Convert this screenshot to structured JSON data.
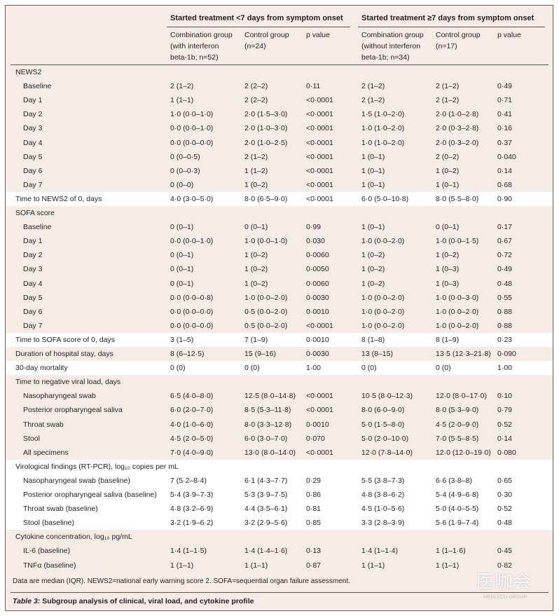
{
  "header": {
    "groups": [
      "Started treatment <7 days from symptom onset",
      "Started treatment ≥7 days from symptom onset"
    ],
    "columns": [
      [
        "Combination group",
        "(with interferon",
        "beta-1b; n=52)"
      ],
      [
        "Control group",
        "(n=24)"
      ],
      [
        "p value"
      ],
      [
        "Combination group",
        "(without interferon",
        "beta-1b; n=34)"
      ],
      [
        "Control group",
        "(n=17)"
      ],
      [
        "p value"
      ]
    ]
  },
  "sections": [
    {
      "heading": "NEWS2",
      "rows": [
        {
          "label": "Baseline",
          "values": [
            "2 (1–2)",
            "2 (2–2)",
            "0·11",
            "2 (1–2)",
            "2 (1–2)",
            "0·49"
          ]
        },
        {
          "label": "Day 1",
          "values": [
            "1 (1–1)",
            "2 (2–2)",
            "<0·0001",
            "2 (1–2)",
            "2 (1–2)",
            "0·71"
          ]
        },
        {
          "label": "Day 2",
          "values": [
            "1·0 (0·0–1·0)",
            "2·0 (1·5–3·0)",
            "<0·0001",
            "1·5 (1·0–2·0)",
            "2·0 (1·0–2·8)",
            "0·41"
          ]
        },
        {
          "label": "Day 3",
          "values": [
            "0·0 (0·0–1·0)",
            "2·0 (1·0–3·0)",
            "<0·0001",
            "1·0 (1·0–2·0)",
            "2·0 (0·3–2·8)",
            "0·16"
          ]
        },
        {
          "label": "Day 4",
          "values": [
            "0·0 (0·0–0·0)",
            "2·0 (1·0–2·5)",
            "<0·0001",
            "1·0 (1·0–2·0)",
            "2·0 (0·3–2·0)",
            "0·37"
          ]
        },
        {
          "label": "Day 5",
          "values": [
            "0 (0–0·5)",
            "2 (1–2)",
            "<0·0001",
            "1 (0–1)",
            "2 (0–2)",
            "0·040"
          ]
        },
        {
          "label": "Day 6",
          "values": [
            "0 (0–0·3)",
            "1 (1–2)",
            "<0·0001",
            "1 (0–1)",
            "1 (0–2)",
            "0·14"
          ]
        },
        {
          "label": "Day 7",
          "values": [
            "0 (0–0)",
            "1 (0–2)",
            "<0·0001",
            "1 (0–1)",
            "1 (0–1)",
            "0·68"
          ]
        }
      ]
    },
    {
      "heading": "Time to NEWS2 of 0, days",
      "values": [
        "4·0 (3·0–5·0)",
        "8·0 (6·5–9·0)",
        "<0·0001",
        "6·0 (5·0–10·8)",
        "8·0 (5·5–8·0)",
        "0·90"
      ]
    },
    {
      "heading": "SOFA score",
      "rows": [
        {
          "label": "Baseline",
          "values": [
            "0 (0–1)",
            "0 (0–1)",
            "0·99",
            "1 (0–1)",
            "0 (0–1)",
            "0·17"
          ]
        },
        {
          "label": "Day 1",
          "values": [
            "0·0 (0·0–1·0)",
            "1·0 (0·0–1·0)",
            "0·030",
            "1·0 (0·0–2·0)",
            "1·0 (0·0–1·5)",
            "0·67"
          ]
        },
        {
          "label": "Day 2",
          "values": [
            "0 (0–1)",
            "1 (0–2)",
            "0·0060",
            "1 (0–2)",
            "1 (0–2)",
            "0·72"
          ]
        },
        {
          "label": "Day 3",
          "values": [
            "0 (0–1)",
            "1 (0–2)",
            "0·0050",
            "1 (0–2)",
            "1 (0–3)",
            "0·49"
          ]
        },
        {
          "label": "Day 4",
          "values": [
            "0 (0–1)",
            "1 (0–2)",
            "0·0060",
            "1 (0–2)",
            "1 (0–3)",
            "0·48"
          ]
        },
        {
          "label": "Day 5",
          "values": [
            "0·0 (0·0–0·8)",
            "1·0 (0·0–2·0)",
            "0·0030",
            "1·0 (0·0–2·0)",
            "1·0 (0·0–3·0)",
            "0·55"
          ]
        },
        {
          "label": "Day 6",
          "values": [
            "0·0 (0·0–0·0)",
            "0·5 (0·0–2·0)",
            "0·0010",
            "1·0 (0·0–2·0)",
            "1·0 (0·0–2·0)",
            "0·88"
          ]
        },
        {
          "label": "Day 7",
          "values": [
            "0·0 (0·0–0·0)",
            "0·5 (0·0–2·0)",
            "<0·0001",
            "1·0 (0·0–2·0)",
            "1·0 (0·0–2·0)",
            "0·88"
          ]
        }
      ]
    },
    {
      "heading": "Time to SOFA score of 0, days",
      "values": [
        "3 (1–5)",
        "7 (1–9)",
        "0·0010",
        "8 (1–8)",
        "8 (1–9)",
        "0·23"
      ]
    },
    {
      "heading": "Duration of hospital stay, days",
      "values": [
        "8 (6–12·5)",
        "15 (9–16)",
        "0·0030",
        "13 (8–15)",
        "13·5 (12·3–21·8)",
        "0·090"
      ]
    },
    {
      "heading": "30-day mortality",
      "values": [
        "0 (0)",
        "0 (0)",
        "1·00",
        "0 (0)",
        "0 (0)",
        "1·00"
      ]
    },
    {
      "heading": "Time to negative viral load, days",
      "rows": [
        {
          "label": "Nasopharyngeal swab",
          "values": [
            "6·5 (4·0–8·0)",
            "12·5 (8·0–14·8)",
            "<0·0001",
            "10·5 (8·0–12·3)",
            "12·0 (8·0–17·0)",
            "0·10"
          ]
        },
        {
          "label": "Posterior oropharyngeal saliva",
          "values": [
            "6·0 (2·0–7·0)",
            "8·5 (5·3–11·8)",
            "<0·0001",
            "8·0 (6·0–9·0)",
            "8·0 (5·3–9·0)",
            "0·79"
          ]
        },
        {
          "label": "Throat swab",
          "values": [
            "4·0 (1·0–6·0)",
            "8·0 (3·3–12·8)",
            "0·0010",
            "5·0 (1·5–8·0)",
            "4·5 (2·0–9·0)",
            "0·52"
          ]
        },
        {
          "label": "Stool",
          "values": [
            "4·5 (2·0–5·0)",
            "6·0 (3·0–7·0)",
            "0·070",
            "5·0 (2·0–10·0)",
            "7·0 (5·5–8·5)",
            "0·14"
          ]
        },
        {
          "label": "All specimens",
          "values": [
            "7·0 (4·0–9·0)",
            "13·0 (8·0–14·0)",
            "<0·0001",
            "12·0 (7·8–14·0)",
            "12·0 (12·0–19·0)",
            "0·080"
          ]
        }
      ]
    },
    {
      "heading": "Virological findings (RT-PCR), log₁₀ copies per mL",
      "rows": [
        {
          "label": "Nasopharyngeal swab (baseline)",
          "values": [
            "7 (5·2–8·4)",
            "6·1 (4·3–7·7)",
            "0·29",
            "5·5 (3·8–7·3)",
            "6·6 (3·8–8)",
            "0·65"
          ]
        },
        {
          "label": "Posterior oropharyngeal saliva (baseline)",
          "values": [
            "5·4 (3·9–7·3)",
            "5·3 (3·9–7·5)",
            "0·86",
            "4·8 (3·8–6·2)",
            "5·4 (4·9–6·8)",
            "0·30"
          ]
        },
        {
          "label": "Throat swab (baseline)",
          "values": [
            "4·8 (3·2–6·9)",
            "4·4 (3·5–6·1)",
            "0·81",
            "4·5 (1·0–5·6)",
            "5·0 (4·0–5·5)",
            "0·52"
          ]
        },
        {
          "label": "Stool (baseline)",
          "values": [
            "3·2 (1·9–6·2)",
            "3·2 (2·9–5·6)",
            "0·85",
            "3·3 (2·8–3·9)",
            "5·6 (1·9–7·4)",
            "0·48"
          ]
        }
      ]
    },
    {
      "heading": "Cytokine concentration, log₁₀ pg/mL",
      "rows": [
        {
          "label": "IL-6 (baseline)",
          "values": [
            "1·4 (1–1·5)",
            "1·4 (1·4–1·6)",
            "0·13",
            "1·4 (1–1·4)",
            "1 (1–1·6)",
            "0·45"
          ]
        },
        {
          "label": "TNFα (baseline)",
          "values": [
            "1 (1–1)",
            "1 (1–1)",
            "0·87",
            "1 (1–1)",
            "1 (1–1)",
            "0·82"
          ]
        }
      ]
    }
  ],
  "footnote": "Data are median (IQR). NEWS2=national early warning score 2. SOFA=sequential organ failure assessment.",
  "caption": {
    "label": "Table 3:",
    "text": "Subgroup analysis of clinical, viral load, and cytokine profile"
  },
  "watermark": {
    "text": "医咖会",
    "sub": "MEDLECO GROUP"
  }
}
